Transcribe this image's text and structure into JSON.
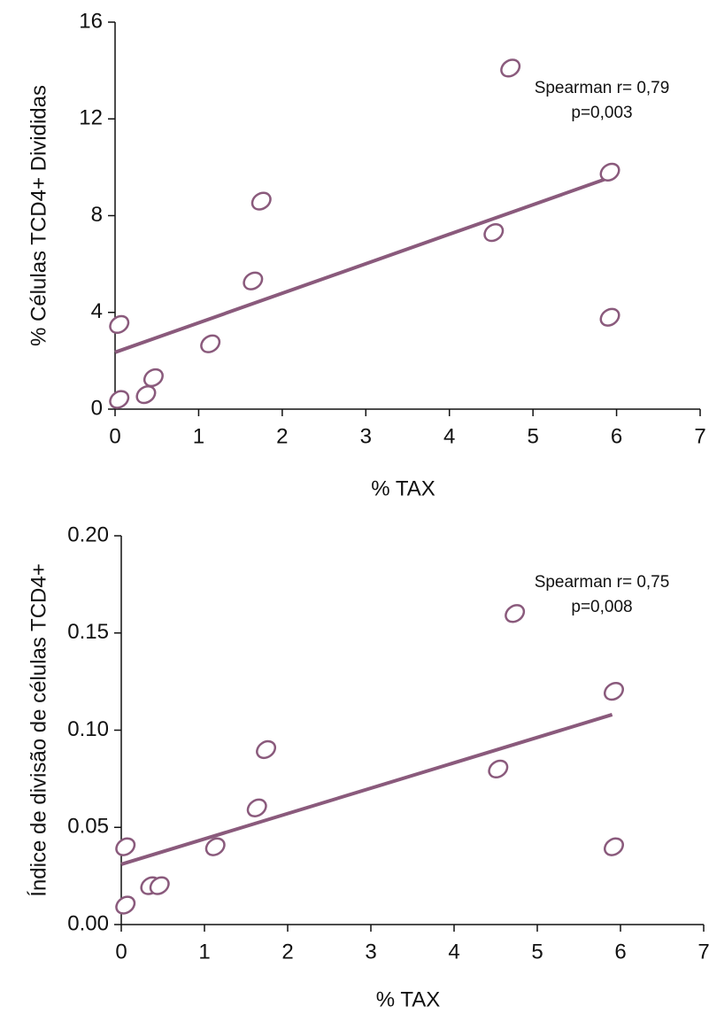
{
  "chart_data": [
    {
      "type": "scatter",
      "x_label": "% TAX",
      "y_label": "% Células TCD4+ Divididas",
      "annotations": [
        "Spearman r= 0,79",
        "p=0,003"
      ],
      "x": [
        0.05,
        0.05,
        0.37,
        0.46,
        1.14,
        1.65,
        1.75,
        4.53,
        4.73,
        5.92,
        5.92
      ],
      "series": [
        {
          "name": "% Células TCD4+ Divididas",
          "color": "#8a5a7c",
          "values": [
            0.4,
            3.5,
            0.6,
            1.3,
            2.7,
            5.3,
            8.6,
            7.3,
            14.1,
            9.8,
            3.8
          ]
        }
      ],
      "fit": {
        "color": "#8a5a7c",
        "x": [
          0,
          5.9
        ],
        "y": [
          2.35,
          9.55
        ]
      },
      "xlim": [
        0,
        7
      ],
      "xticks": [
        0,
        1,
        2,
        3,
        4,
        5,
        6,
        7
      ],
      "ylim": [
        0,
        16
      ],
      "yticks": [
        0,
        4,
        8,
        12,
        16
      ]
    },
    {
      "type": "scatter",
      "x_label": "% TAX",
      "y_label": "Índice de divisão de células TCD4+",
      "annotations": [
        "Spearman r= 0,75",
        "p=0,008"
      ],
      "x": [
        0.05,
        0.05,
        0.35,
        0.46,
        1.13,
        1.63,
        1.74,
        4.53,
        4.73,
        5.92,
        5.92
      ],
      "series": [
        {
          "name": "Índice de divisão de células TCD4+",
          "color": "#8a5a7c",
          "values": [
            0.01,
            0.04,
            0.02,
            0.02,
            0.04,
            0.06,
            0.09,
            0.08,
            0.16,
            0.12,
            0.04
          ]
        }
      ],
      "fit": {
        "color": "#8a5a7c",
        "x": [
          0,
          5.9
        ],
        "y": [
          0.031,
          0.108
        ]
      },
      "xlim": [
        0,
        7
      ],
      "xticks": [
        0,
        1,
        2,
        3,
        4,
        5,
        6,
        7
      ],
      "ylim": [
        0,
        0.2
      ],
      "yticks": [
        {
          "value": 0,
          "label": "0.00"
        },
        {
          "value": 0.05,
          "label": "0.05"
        },
        {
          "value": 0.1,
          "label": "0.10"
        },
        {
          "value": 0.15,
          "label": "0.15"
        },
        {
          "value": 0.2,
          "label": "0.20"
        }
      ]
    }
  ]
}
